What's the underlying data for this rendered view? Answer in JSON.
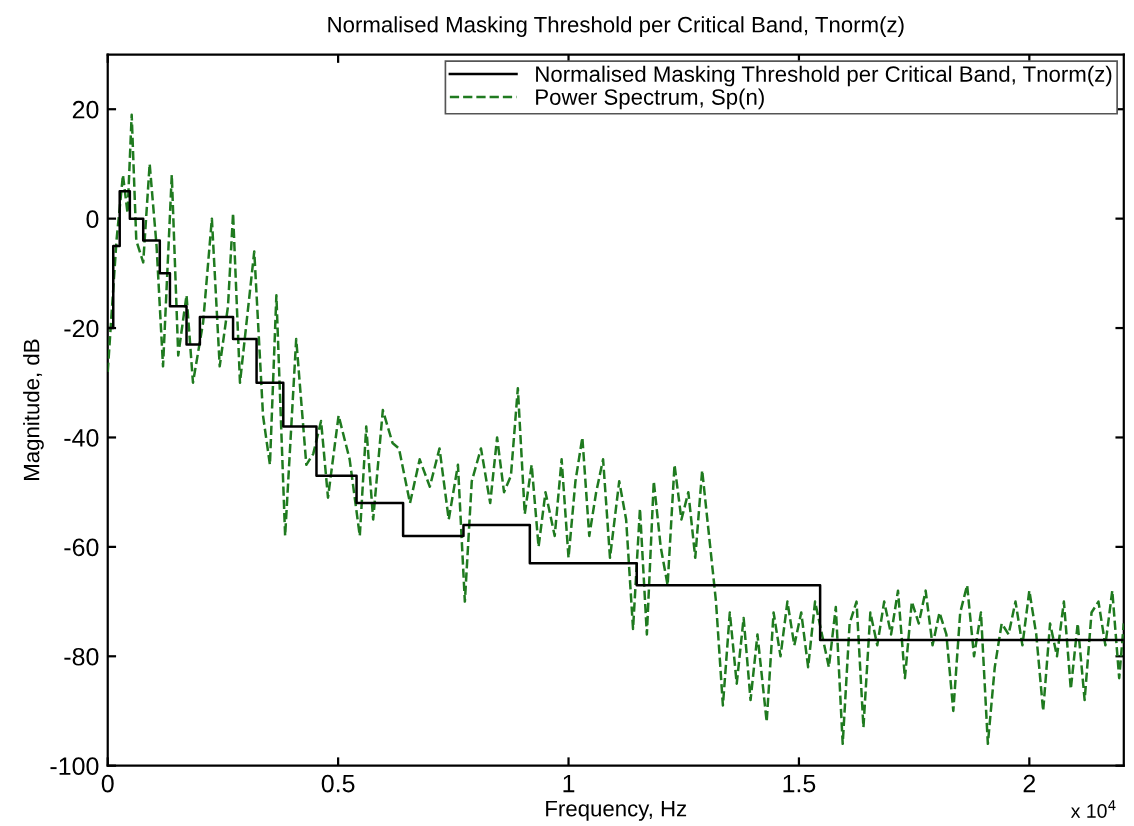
{
  "chart_data": {
    "type": "line",
    "title": "Normalised Masking Threshold per Critical Band, Tnorm(z)",
    "xlabel": "Frequency, Hz",
    "ylabel": "Magnitude, dB",
    "annotations": [
      "x 10$^{4}$"
    ],
    "xlim": [
      0,
      2.205
    ],
    "ylim": [
      -100,
      30
    ],
    "xticks": [
      0,
      0.5,
      1,
      1.5,
      2
    ],
    "yticks": [
      -100,
      -80,
      -60,
      -40,
      -20,
      0,
      20
    ],
    "grid": false,
    "legend": "top right",
    "marker": "none",
    "series": [
      {
        "name": "Normalised Masking Threshold per Critical Band, Tnorm(z)",
        "type": "step",
        "line_style": "solid",
        "color": "#000000",
        "x": [
          0,
          0.012,
          0.026,
          0.048,
          0.077,
          0.113,
          0.135,
          0.171,
          0.2,
          0.272,
          0.323,
          0.381,
          0.453,
          0.54,
          0.641,
          0.772,
          0.916,
          1.148,
          1.546,
          2.205
        ],
        "values": [
          -20,
          -5,
          5,
          0,
          -4,
          -10,
          -16,
          -23,
          -18,
          -22,
          -30,
          -38,
          -47,
          -52,
          -58,
          -56,
          -63,
          -67,
          -77,
          -77
        ]
      },
      {
        "name": "Power Spectrum, Sp(n)",
        "line_style": "dashed",
        "color": "#1f7a1f",
        "x": [
          0,
          0.019,
          0.033,
          0.043,
          0.052,
          0.062,
          0.077,
          0.091,
          0.106,
          0.12,
          0.139,
          0.153,
          0.171,
          0.185,
          0.207,
          0.226,
          0.243,
          0.261,
          0.272,
          0.287,
          0.318,
          0.337,
          0.352,
          0.366,
          0.385,
          0.409,
          0.431,
          0.446,
          0.463,
          0.478,
          0.501,
          0.525,
          0.547,
          0.561,
          0.576,
          0.597,
          0.618,
          0.632,
          0.656,
          0.677,
          0.699,
          0.72,
          0.74,
          0.76,
          0.775,
          0.79,
          0.81,
          0.83,
          0.845,
          0.86,
          0.875,
          0.89,
          0.905,
          0.92,
          0.935,
          0.95,
          0.97,
          0.985,
          1.0,
          1.015,
          1.03,
          1.045,
          1.06,
          1.075,
          1.09,
          1.11,
          1.125,
          1.14,
          1.155,
          1.17,
          1.185,
          1.2,
          1.215,
          1.23,
          1.245,
          1.26,
          1.275,
          1.29,
          1.305,
          1.32,
          1.335,
          1.35,
          1.365,
          1.38,
          1.395,
          1.41,
          1.43,
          1.445,
          1.46,
          1.475,
          1.49,
          1.505,
          1.52,
          1.535,
          1.55,
          1.565,
          1.58,
          1.595,
          1.61,
          1.625,
          1.64,
          1.655,
          1.67,
          1.685,
          1.7,
          1.715,
          1.73,
          1.745,
          1.76,
          1.775,
          1.79,
          1.805,
          1.82,
          1.835,
          1.85,
          1.865,
          1.88,
          1.895,
          1.91,
          1.925,
          1.94,
          1.955,
          1.97,
          1.985,
          2.0,
          2.015,
          2.03,
          2.045,
          2.06,
          2.075,
          2.09,
          2.105,
          2.12,
          2.135,
          2.15,
          2.165,
          2.18,
          2.195,
          2.205
        ],
        "values": [
          -28,
          -4,
          8,
          1,
          19,
          -4,
          -8,
          10,
          -5,
          -27,
          8,
          -25,
          -14,
          -30,
          -19,
          0,
          -27,
          -16,
          1,
          -30,
          -6,
          -36,
          -45,
          -14,
          -58,
          -22,
          -45,
          -43,
          -37,
          -51,
          -36,
          -44,
          -58,
          -38,
          -55,
          -35,
          -41,
          -42,
          -52,
          -44,
          -49,
          -42,
          -55,
          -45,
          -70,
          -48,
          -42,
          -52,
          -40,
          -50,
          -47,
          -31,
          -54,
          -45,
          -60,
          -50,
          -58,
          -44,
          -62,
          -48,
          -40,
          -58,
          -50,
          -44,
          -62,
          -48,
          -55,
          -75,
          -53,
          -76,
          -48,
          -60,
          -67,
          -45,
          -55,
          -50,
          -62,
          -46,
          -58,
          -70,
          -89,
          -72,
          -85,
          -73,
          -88,
          -76,
          -92,
          -72,
          -80,
          -70,
          -78,
          -72,
          -82,
          -70,
          -76,
          -82,
          -71,
          -96,
          -74,
          -70,
          -93,
          -72,
          -78,
          -70,
          -76,
          -68,
          -84,
          -70,
          -74,
          -68,
          -78,
          -72,
          -76,
          -90,
          -72,
          -67,
          -80,
          -72,
          -96,
          -82,
          -74,
          -76,
          -70,
          -78,
          -68,
          -76,
          -90,
          -74,
          -80,
          -70,
          -86,
          -74,
          -88,
          -72,
          -70,
          -78,
          -68,
          -84,
          -74
        ]
      }
    ]
  }
}
